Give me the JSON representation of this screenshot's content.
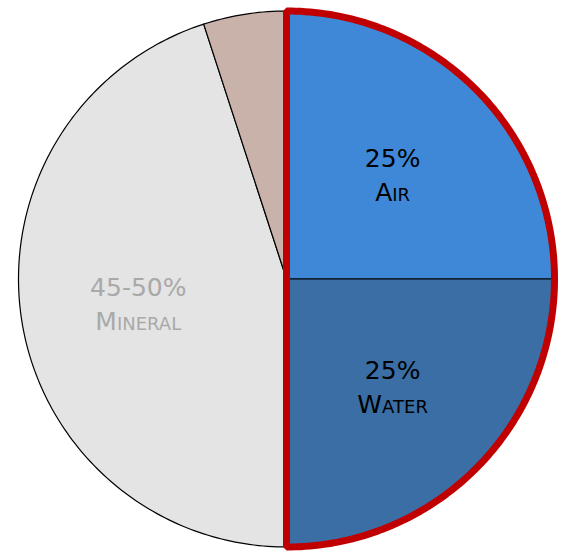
{
  "chart_data": {
    "type": "pie",
    "categories": [
      "Air",
      "Water",
      "Mineral",
      null
    ],
    "values": [
      25,
      25,
      45,
      5
    ],
    "value_labels": [
      "25%",
      "25%",
      "45-50%",
      null
    ],
    "colors": [
      "#3f88d8",
      "#3a6ea5",
      "#e4e4e4",
      "#c9b2aa"
    ],
    "data_labels": true
  }
}
